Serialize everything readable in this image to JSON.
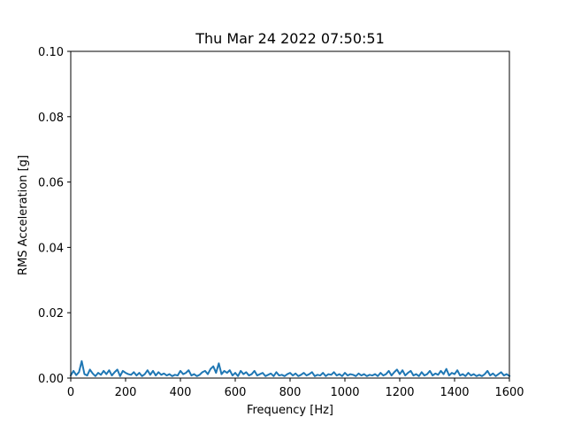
{
  "chart_data": {
    "type": "line",
    "title": "Thu Mar 24 2022 07:50:51",
    "xlabel": "Frequency [Hz]",
    "ylabel": "RMS Acceleration [g]",
    "xlim": [
      0,
      1600
    ],
    "ylim": [
      0,
      0.1
    ],
    "xticks": [
      0,
      200,
      400,
      600,
      800,
      1000,
      1200,
      1400,
      1600
    ],
    "xtick_labels": [
      "0",
      "200",
      "400",
      "600",
      "800",
      "1000",
      "1200",
      "1400",
      "1600"
    ],
    "yticks": [
      0,
      0.02,
      0.04,
      0.06,
      0.08,
      0.1
    ],
    "ytick_labels": [
      "0.00",
      "0.02",
      "0.04",
      "0.06",
      "0.08",
      "0.10"
    ],
    "grid": false,
    "legend": "none",
    "series": [
      {
        "color": "#1f77b4",
        "x": [
          0,
          10,
          20,
          30,
          40,
          50,
          60,
          70,
          80,
          90,
          100,
          110,
          120,
          130,
          140,
          150,
          160,
          170,
          180,
          190,
          200,
          210,
          220,
          230,
          240,
          250,
          260,
          270,
          280,
          290,
          300,
          310,
          320,
          330,
          340,
          350,
          360,
          370,
          380,
          390,
          400,
          410,
          420,
          430,
          440,
          450,
          460,
          470,
          480,
          490,
          500,
          510,
          520,
          530,
          540,
          550,
          560,
          570,
          580,
          590,
          600,
          610,
          620,
          630,
          640,
          650,
          660,
          670,
          680,
          690,
          700,
          710,
          720,
          730,
          740,
          750,
          760,
          770,
          780,
          790,
          800,
          810,
          820,
          830,
          840,
          850,
          860,
          870,
          880,
          890,
          900,
          910,
          920,
          930,
          940,
          950,
          960,
          970,
          980,
          990,
          1000,
          1010,
          1020,
          1030,
          1040,
          1050,
          1060,
          1070,
          1080,
          1090,
          1100,
          1110,
          1120,
          1130,
          1140,
          1150,
          1160,
          1170,
          1180,
          1190,
          1200,
          1210,
          1220,
          1230,
          1240,
          1250,
          1260,
          1270,
          1280,
          1290,
          1300,
          1310,
          1320,
          1330,
          1340,
          1350,
          1360,
          1370,
          1380,
          1390,
          1400,
          1410,
          1420,
          1430,
          1440,
          1450,
          1460,
          1470,
          1480,
          1490,
          1500,
          1510,
          1520,
          1530,
          1540,
          1550,
          1560,
          1570,
          1580,
          1590,
          1600
        ],
        "y": [
          0.0008,
          0.0022,
          0.0009,
          0.0018,
          0.0052,
          0.0012,
          0.0008,
          0.0026,
          0.0014,
          0.0006,
          0.0016,
          0.001,
          0.0022,
          0.0012,
          0.0024,
          0.0008,
          0.0018,
          0.0026,
          0.0006,
          0.0022,
          0.0016,
          0.0012,
          0.001,
          0.0018,
          0.0008,
          0.0016,
          0.0006,
          0.0012,
          0.0024,
          0.001,
          0.0022,
          0.0008,
          0.0018,
          0.001,
          0.0014,
          0.0008,
          0.0012,
          0.0006,
          0.001,
          0.0008,
          0.0022,
          0.0012,
          0.0016,
          0.0024,
          0.0008,
          0.0012,
          0.0006,
          0.001,
          0.0018,
          0.0022,
          0.0012,
          0.0028,
          0.0036,
          0.0016,
          0.0045,
          0.0012,
          0.0022,
          0.0016,
          0.0024,
          0.0008,
          0.0016,
          0.0006,
          0.0022,
          0.0012,
          0.0018,
          0.0008,
          0.0012,
          0.0022,
          0.0008,
          0.0012,
          0.0016,
          0.0006,
          0.001,
          0.0014,
          0.0006,
          0.0018,
          0.0008,
          0.001,
          0.0006,
          0.0012,
          0.0016,
          0.0008,
          0.0014,
          0.0006,
          0.001,
          0.0016,
          0.0008,
          0.0012,
          0.0018,
          0.0006,
          0.001,
          0.0008,
          0.0016,
          0.0006,
          0.0012,
          0.001,
          0.0018,
          0.0008,
          0.0012,
          0.0006,
          0.0016,
          0.0008,
          0.0012,
          0.001,
          0.0006,
          0.0014,
          0.0008,
          0.0012,
          0.0006,
          0.001,
          0.0008,
          0.0012,
          0.0006,
          0.0016,
          0.0008,
          0.0012,
          0.0022,
          0.0008,
          0.0018,
          0.0026,
          0.0012,
          0.0024,
          0.0008,
          0.0016,
          0.0022,
          0.0008,
          0.0012,
          0.0006,
          0.0018,
          0.0008,
          0.0012,
          0.0022,
          0.0008,
          0.0014,
          0.001,
          0.0022,
          0.0012,
          0.0028,
          0.0008,
          0.0016,
          0.0012,
          0.0024,
          0.0008,
          0.0012,
          0.0006,
          0.0016,
          0.0008,
          0.0012,
          0.0006,
          0.001,
          0.0006,
          0.0012,
          0.0022,
          0.0008,
          0.0014,
          0.0006,
          0.0012,
          0.0018,
          0.0008,
          0.0012,
          0.0006
        ]
      }
    ]
  }
}
